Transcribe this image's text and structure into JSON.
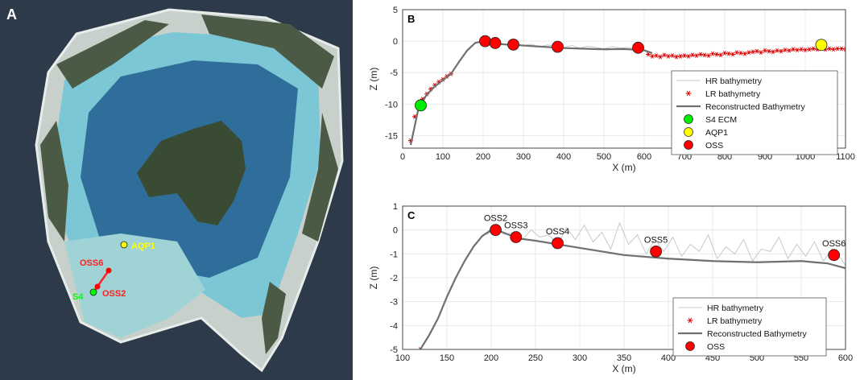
{
  "panels": {
    "a": {
      "label": "A",
      "markers": [
        {
          "name": "AQP1",
          "text": "AQP1",
          "color": "#ffff00",
          "label_color": "#ffff00"
        },
        {
          "name": "OSS6",
          "text": "OSS6",
          "color": "#ff0000",
          "label_color": "#ff2020"
        },
        {
          "name": "OSS2",
          "text": "OSS2",
          "color": "#ff0000",
          "label_color": "#ff2020"
        },
        {
          "name": "S4",
          "text": "S4",
          "color": "#00ff00",
          "label_color": "#00ff00"
        }
      ]
    }
  },
  "chart_data": [
    {
      "id": "B",
      "type": "line",
      "panel_label": "B",
      "xlabel": "X (m)",
      "ylabel": "Z (m)",
      "xlim": [
        0,
        1100
      ],
      "ylim": [
        -17,
        5
      ],
      "xticks": [
        0,
        100,
        200,
        300,
        400,
        500,
        600,
        700,
        800,
        900,
        1000,
        1100
      ],
      "yticks": [
        5,
        0,
        -5,
        -10,
        -15
      ],
      "grid": true,
      "legend_position": "lower-right",
      "series": [
        {
          "name": "HR bathymetry",
          "style": "line",
          "color": "#c8c8c8",
          "x": [
            180,
            200,
            220,
            240,
            260,
            280,
            300,
            320,
            340,
            360,
            380,
            400,
            420,
            440,
            460,
            480,
            500,
            520,
            540,
            560,
            580,
            600
          ],
          "y": [
            -0.2,
            0.0,
            -0.5,
            -0.3,
            -0.6,
            -0.4,
            -0.7,
            -0.5,
            -0.9,
            -0.6,
            -0.8,
            -1.0,
            -0.7,
            -1.1,
            -0.8,
            -1.0,
            -1.2,
            -0.9,
            -1.1,
            -1.0,
            -1.2,
            -1.1
          ]
        },
        {
          "name": "LR bathymetry",
          "style": "marker",
          "marker": "asterisk",
          "color": "#e00000",
          "x": [
            20,
            30,
            40,
            50,
            60,
            70,
            80,
            90,
            100,
            110,
            120,
            610,
            620,
            630,
            640,
            650,
            660,
            670,
            680,
            690,
            700,
            710,
            720,
            730,
            740,
            750,
            760,
            770,
            780,
            790,
            800,
            810,
            820,
            830,
            840,
            850,
            860,
            870,
            880,
            890,
            900,
            910,
            920,
            930,
            940,
            950,
            960,
            970,
            980,
            990,
            1000,
            1010,
            1020,
            1030,
            1040,
            1050,
            1060,
            1070,
            1080,
            1090,
            1100
          ],
          "y": [
            -15.8,
            -12.0,
            -10.0,
            -9.2,
            -8.4,
            -7.6,
            -7.0,
            -6.5,
            -6.1,
            -5.6,
            -5.2,
            -2.1,
            -2.4,
            -2.3,
            -2.5,
            -2.2,
            -2.4,
            -2.3,
            -2.5,
            -2.4,
            -2.3,
            -2.4,
            -2.2,
            -2.3,
            -2.1,
            -2.2,
            -2.3,
            -2.0,
            -2.1,
            -2.2,
            -1.9,
            -2.0,
            -2.1,
            -1.8,
            -1.9,
            -2.0,
            -1.8,
            -1.7,
            -1.6,
            -1.8,
            -1.5,
            -1.6,
            -1.7,
            -1.5,
            -1.6,
            -1.4,
            -1.5,
            -1.3,
            -1.4,
            -1.3,
            -1.4,
            -1.3,
            -1.2,
            -1.3,
            -1.2,
            -1.3,
            -1.2,
            -1.3,
            -1.2,
            -1.2,
            -1.3
          ]
        },
        {
          "name": "Reconstructed Bathymetry",
          "style": "line",
          "color": "#707070",
          "x": [
            20,
            40,
            60,
            80,
            100,
            120,
            140,
            160,
            180,
            200,
            220,
            240,
            260,
            280,
            300,
            350,
            400,
            450,
            500,
            550,
            600,
            620
          ],
          "y": [
            -16.5,
            -10.5,
            -8.5,
            -7.2,
            -6.2,
            -5.2,
            -3.3,
            -1.5,
            -0.3,
            0.0,
            -0.3,
            -0.45,
            -0.55,
            -0.6,
            -0.7,
            -0.9,
            -1.1,
            -1.2,
            -1.3,
            -1.25,
            -1.45,
            -1.9
          ]
        },
        {
          "name": "S4 ECM",
          "style": "marker",
          "marker": "circle",
          "color": "#00ee00",
          "x": [
            45
          ],
          "y": [
            -10.2
          ]
        },
        {
          "name": "AQP1",
          "style": "marker",
          "marker": "circle",
          "color": "#ffff00",
          "x": [
            1040
          ],
          "y": [
            -0.6
          ]
        },
        {
          "name": "OSS",
          "style": "marker",
          "marker": "circle",
          "color": "#ff0000",
          "x": [
            205,
            230,
            275,
            385,
            585
          ],
          "y": [
            0.0,
            -0.3,
            -0.55,
            -0.9,
            -1.05
          ]
        }
      ]
    },
    {
      "id": "C",
      "type": "line",
      "panel_label": "C",
      "xlabel": "X (m)",
      "ylabel": "Z (m)",
      "xlim": [
        100,
        600
      ],
      "ylim": [
        -5,
        1
      ],
      "xticks": [
        100,
        150,
        200,
        250,
        300,
        350,
        400,
        450,
        500,
        550,
        600
      ],
      "yticks": [
        1,
        0,
        -1,
        -2,
        -3,
        -4,
        -5
      ],
      "grid": true,
      "legend_position": "lower-right",
      "series": [
        {
          "name": "HR bathymetry",
          "style": "line",
          "color": "#c8c8c8",
          "x": [
            195,
            205,
            215,
            225,
            235,
            245,
            255,
            265,
            275,
            285,
            295,
            305,
            315,
            325,
            335,
            345,
            355,
            365,
            375,
            385,
            395,
            405,
            415,
            425,
            435,
            445,
            455,
            465,
            475,
            485,
            495,
            505,
            515,
            525,
            535,
            545,
            555,
            565,
            575,
            585,
            595,
            600
          ],
          "y": [
            -0.2,
            0.1,
            -0.2,
            -0.1,
            -0.4,
            0.0,
            -0.3,
            -0.2,
            -0.6,
            0.1,
            -0.4,
            0.2,
            -0.5,
            -0.1,
            -0.8,
            0.3,
            -0.6,
            -0.2,
            -1.0,
            -0.4,
            -0.9,
            -0.3,
            -1.1,
            -0.6,
            -0.9,
            -0.2,
            -1.2,
            -0.7,
            -1.0,
            -0.4,
            -1.3,
            -0.8,
            -0.9,
            -0.3,
            -1.2,
            -0.6,
            -1.1,
            -0.5,
            -1.3,
            -0.8,
            -1.2,
            -1.5
          ]
        },
        {
          "name": "LR bathymetry",
          "style": "marker",
          "marker": "asterisk",
          "color": "#e00000",
          "x": [
            120
          ],
          "y": [
            -5.0
          ]
        },
        {
          "name": "Reconstructed Bathymetry",
          "style": "line",
          "color": "#707070",
          "x": [
            120,
            130,
            140,
            150,
            160,
            170,
            180,
            190,
            200,
            210,
            220,
            230,
            250,
            275,
            300,
            350,
            400,
            450,
            500,
            550,
            580,
            600
          ],
          "y": [
            -5.0,
            -4.4,
            -3.7,
            -2.8,
            -2.0,
            -1.3,
            -0.7,
            -0.25,
            0.0,
            -0.05,
            -0.2,
            -0.35,
            -0.45,
            -0.6,
            -0.75,
            -1.05,
            -1.2,
            -1.3,
            -1.35,
            -1.3,
            -1.4,
            -1.6
          ]
        },
        {
          "name": "OSS",
          "style": "marker",
          "marker": "circle",
          "color": "#ff0000",
          "x": [
            205,
            228,
            275,
            386,
            587
          ],
          "y": [
            0.0,
            -0.3,
            -0.55,
            -0.9,
            -1.05
          ]
        }
      ],
      "annotations": [
        {
          "text": "OSS2",
          "x": 205,
          "y": 0.0
        },
        {
          "text": "OSS3",
          "x": 228,
          "y": -0.3
        },
        {
          "text": "OSS4",
          "x": 275,
          "y": -0.55
        },
        {
          "text": "OSS5",
          "x": 386,
          "y": -0.9
        },
        {
          "text": "OSS6",
          "x": 587,
          "y": -1.05
        }
      ]
    }
  ]
}
